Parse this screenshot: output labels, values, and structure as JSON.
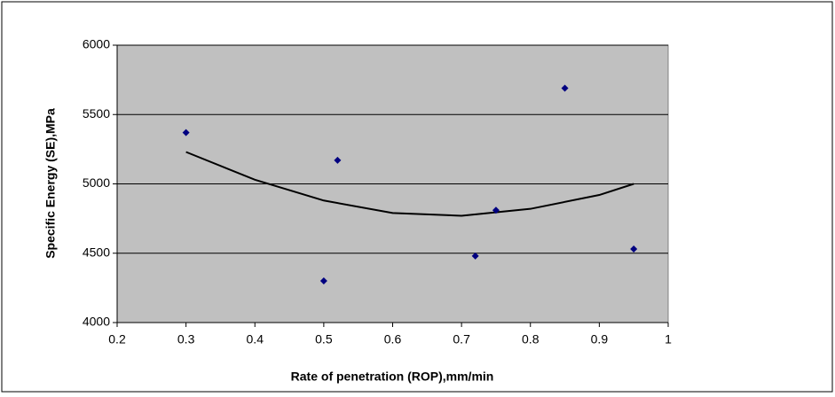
{
  "chart_data": {
    "type": "scatter",
    "xlabel": "Rate of penetration (ROP),mm/min",
    "ylabel": "Specific Energy (SE),MPa",
    "series": [
      {
        "color": "#000080",
        "x": [
          0.3,
          0.5,
          0.52,
          0.72,
          0.75,
          0.85,
          0.95
        ],
        "values": [
          5370,
          4300,
          5170,
          4480,
          4810,
          5690,
          4530
        ]
      }
    ],
    "trendline": {
      "color": "#000000",
      "x": [
        0.3,
        0.4,
        0.5,
        0.6,
        0.7,
        0.8,
        0.9,
        0.95
      ],
      "values": [
        5230,
        5030,
        4880,
        4790,
        4770,
        4820,
        4920,
        5000
      ]
    },
    "xlim": [
      0.2,
      1
    ],
    "xticks": [
      0.2,
      0.3,
      0.4,
      0.5,
      0.6,
      0.7,
      0.8,
      0.9,
      1
    ],
    "ylim": [
      4000,
      6000
    ],
    "yticks": [
      4000,
      4500,
      5000,
      5500,
      6000
    ],
    "grid": true,
    "plot_background": "#c0c0c0"
  }
}
